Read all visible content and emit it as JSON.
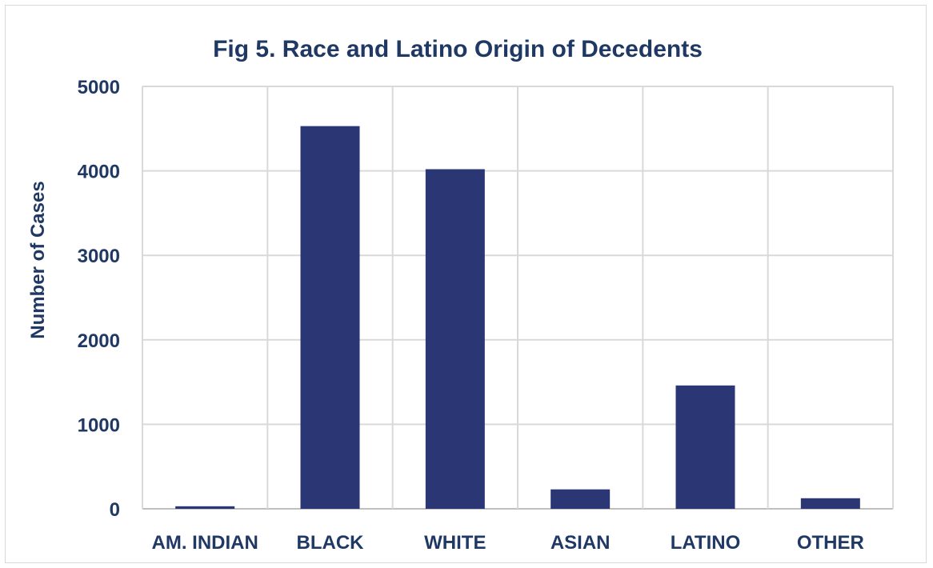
{
  "chart_data": {
    "type": "bar",
    "title": "Fig 5. Race and Latino Origin of Decedents",
    "xlabel": "",
    "ylabel": "Number of Cases",
    "categories": [
      "AM. INDIAN",
      "BLACK",
      "WHITE",
      "ASIAN",
      "LATINO",
      "OTHER"
    ],
    "values": [
      30,
      4530,
      4020,
      230,
      1460,
      125
    ],
    "ylim": [
      0,
      5000
    ],
    "yticks": [
      "0",
      "1000",
      "2000",
      "3000",
      "4000",
      "5000"
    ],
    "grid": "on",
    "legend": "none",
    "colors": {
      "bar": "#2b3674",
      "text": "#1f3864",
      "grid": "#d9d9d9",
      "axis": "#bfbfbf"
    }
  }
}
